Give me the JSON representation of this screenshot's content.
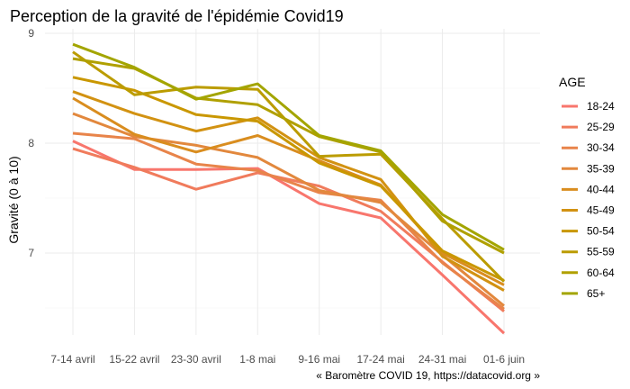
{
  "chart_data": {
    "type": "line",
    "title": "Perception de la gravité de l'épidémie Covid19",
    "xlabel": "",
    "ylabel": "Gravité (0 à 10)",
    "caption": "« Baromètre COVID 19, https://datacovid.org »",
    "categories": [
      "7-14 avril",
      "15-22 avril",
      "23-30 avril",
      "1-8 mai",
      "9-16 mai",
      "17-24 mai",
      "24-31 mai",
      "01-6 juin"
    ],
    "yticks": [
      7,
      8,
      9
    ],
    "ylim": [
      6.2,
      9.05
    ],
    "grid": true,
    "legend": {
      "title": "AGE",
      "position": "right"
    },
    "series": [
      {
        "name": "18-24",
        "color": "#f8766d",
        "values": [
          8.02,
          7.76,
          7.76,
          7.77,
          7.45,
          7.32,
          6.8,
          6.27
        ]
      },
      {
        "name": "25-29",
        "color": "#f07b5c",
        "values": [
          7.95,
          7.78,
          7.58,
          7.73,
          7.61,
          7.38,
          6.92,
          6.47
        ]
      },
      {
        "name": "30-34",
        "color": "#e8844a",
        "values": [
          8.09,
          8.04,
          7.81,
          7.75,
          7.55,
          7.48,
          6.91,
          6.49
        ]
      },
      {
        "name": "35-39",
        "color": "#e2883d",
        "values": [
          8.27,
          8.06,
          7.98,
          7.87,
          7.57,
          7.46,
          6.98,
          6.52
        ]
      },
      {
        "name": "40-44",
        "color": "#d98d1f",
        "values": [
          8.41,
          8.08,
          7.92,
          8.07,
          7.84,
          7.62,
          7.0,
          6.71
        ]
      },
      {
        "name": "45-49",
        "color": "#d29212",
        "values": [
          8.47,
          8.27,
          8.11,
          8.23,
          7.87,
          7.67,
          6.97,
          6.66
        ]
      },
      {
        "name": "50-54",
        "color": "#c99700",
        "values": [
          8.6,
          8.48,
          8.26,
          8.2,
          7.82,
          7.61,
          7.02,
          6.75
        ]
      },
      {
        "name": "55-59",
        "color": "#bb9c00",
        "values": [
          8.83,
          8.44,
          8.51,
          8.49,
          7.88,
          7.9,
          7.31,
          6.74
        ]
      },
      {
        "name": "60-64",
        "color": "#b0a000",
        "values": [
          8.77,
          8.68,
          8.41,
          8.35,
          8.06,
          7.92,
          7.29,
          7.0
        ]
      },
      {
        "name": "65+",
        "color": "#a3a500",
        "values": [
          8.9,
          8.69,
          8.4,
          8.54,
          8.07,
          7.93,
          7.35,
          7.03
        ]
      }
    ]
  }
}
